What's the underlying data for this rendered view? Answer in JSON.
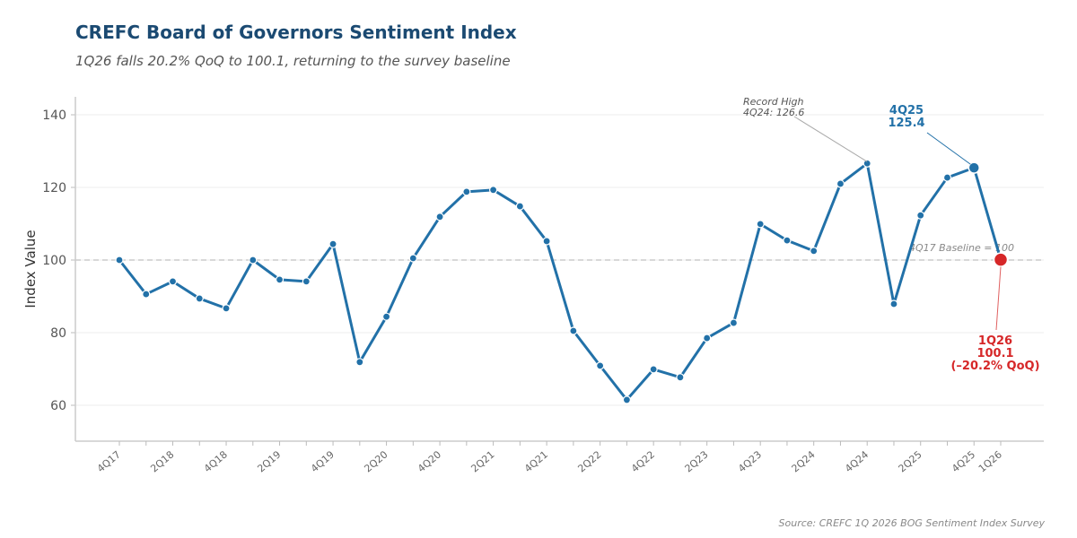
{
  "chart_data": {
    "type": "line",
    "title": "CREFC Board of Governors Sentiment Index",
    "subtitle": "1Q26 falls 20.2% QoQ to 100.1, returning to the survey baseline",
    "ylabel": "Index Value",
    "xlabel": "",
    "ylim": [
      50,
      145
    ],
    "yticks": [
      60,
      80,
      100,
      120,
      140
    ],
    "grid": true,
    "x": [
      "4Q17",
      "1Q18",
      "2Q18",
      "3Q18",
      "4Q18",
      "1Q19",
      "2Q19",
      "3Q19",
      "4Q19",
      "1Q20",
      "2Q20",
      "3Q20",
      "4Q20",
      "1Q21",
      "2Q21",
      "3Q21",
      "4Q21",
      "1Q22",
      "2Q22",
      "3Q22",
      "4Q22",
      "1Q23",
      "2Q23",
      "3Q23",
      "4Q23",
      "1Q24",
      "2Q24",
      "3Q24",
      "4Q24",
      "1Q25",
      "2Q25",
      "3Q25",
      "4Q25",
      "1Q26"
    ],
    "xtick_labels": [
      "4Q17",
      "2Q18",
      "4Q18",
      "2Q19",
      "4Q19",
      "2Q20",
      "4Q20",
      "2Q21",
      "4Q21",
      "2Q22",
      "4Q22",
      "2Q23",
      "4Q23",
      "2Q24",
      "4Q24",
      "2Q25",
      "4Q25",
      "1Q26"
    ],
    "series": [
      {
        "name": "Sentiment Index",
        "color": "#2271a8",
        "values": [
          100.0,
          90.6,
          94.1,
          89.4,
          86.7,
          100.0,
          94.6,
          94.1,
          104.4,
          71.9,
          84.4,
          100.5,
          111.9,
          118.8,
          119.3,
          114.8,
          105.2,
          80.5,
          70.9,
          61.5,
          69.9,
          67.7,
          78.5,
          82.7,
          109.9,
          105.4,
          102.5,
          121.0,
          126.6,
          87.9,
          112.3,
          122.7,
          125.4,
          100.1
        ]
      }
    ],
    "baseline": {
      "value": 100,
      "label": "4Q17 Baseline = 100"
    },
    "annotations": {
      "record": {
        "line1": "Record High",
        "line2": "4Q24: 126.6"
      },
      "q4_25": {
        "line1": "4Q25",
        "line2": "125.4",
        "color": "#2271a8"
      },
      "q1_26": {
        "line1": "1Q26",
        "line2": "100.1",
        "line3": "(–20.2% QoQ)",
        "color": "#d62728"
      }
    },
    "source": "Source: CREFC 1Q 2026 BOG Sentiment Index Survey"
  }
}
